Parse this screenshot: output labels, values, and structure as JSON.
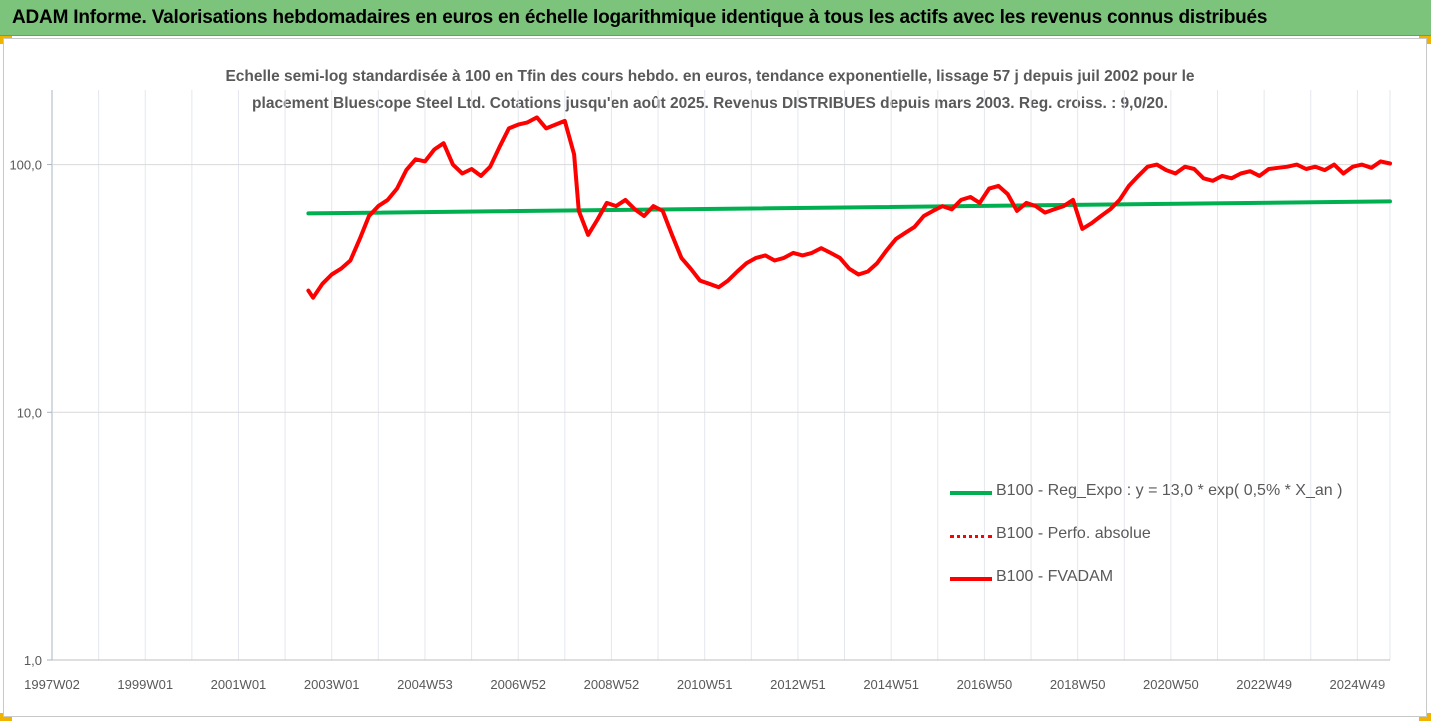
{
  "header": {
    "title": "ADAM Informe. Valorisations hebdomadaires en euros en échelle logarithmique identique à tous les actifs avec les revenus connus distribués"
  },
  "chart_data": {
    "type": "line",
    "title_lines": [
      "Echelle semi-log standardisée à 100 en Tfin des cours hebdo. en euros, tendance exponentielle, lissage 57 j depuis juil 2002 pour le",
      "placement Bluescope Steel Ltd. Cotations jusqu'en août 2025.  Revenus DISTRIBUES depuis mars 2003. Reg. croiss. : 9,0/20."
    ],
    "y_scale": "log",
    "ylim": [
      1,
      200
    ],
    "y_ticks": [
      {
        "value": 1,
        "label": "1,0"
      },
      {
        "value": 10,
        "label": "10,0"
      },
      {
        "value": 100,
        "label": "100,0"
      }
    ],
    "xlim": [
      1997.0,
      2025.7
    ],
    "x_ticks": [
      {
        "value": 1997.0,
        "label": "1997W02"
      },
      {
        "value": 1999.0,
        "label": "1999W01"
      },
      {
        "value": 2001.0,
        "label": "2001W01"
      },
      {
        "value": 2003.0,
        "label": "2003W01"
      },
      {
        "value": 2005.0,
        "label": "2004W53"
      },
      {
        "value": 2007.0,
        "label": "2006W52"
      },
      {
        "value": 2009.0,
        "label": "2008W52"
      },
      {
        "value": 2011.0,
        "label": "2010W51"
      },
      {
        "value": 2013.0,
        "label": "2012W51"
      },
      {
        "value": 2015.0,
        "label": "2014W51"
      },
      {
        "value": 2017.0,
        "label": "2016W50"
      },
      {
        "value": 2019.0,
        "label": "2018W50"
      },
      {
        "value": 2021.0,
        "label": "2020W50"
      },
      {
        "value": 2023.0,
        "label": "2022W49"
      },
      {
        "value": 2025.0,
        "label": "2024W49"
      }
    ],
    "grid": "vertical",
    "legend_placement": "bottom-right",
    "series": [
      {
        "name": "B100 - Reg_Expo : y = 13,0 * exp( 0,5% *  X_an )",
        "color": "#00b050",
        "style": "solid",
        "x": [
          2002.5,
          2025.7
        ],
        "y": [
          63.5,
          71.0
        ]
      },
      {
        "name": "B100 - Perfo. absolue",
        "color": "#ff0000",
        "style": "dotted",
        "x": [],
        "y": []
      },
      {
        "name": "B100 - FVADAM",
        "color": "#ff0000",
        "style": "solid",
        "x": [
          2002.5,
          2002.6,
          2002.8,
          2003.0,
          2003.2,
          2003.4,
          2003.6,
          2003.8,
          2004.0,
          2004.2,
          2004.4,
          2004.6,
          2004.8,
          2005.0,
          2005.2,
          2005.4,
          2005.6,
          2005.8,
          2006.0,
          2006.2,
          2006.4,
          2006.6,
          2006.8,
          2007.0,
          2007.2,
          2007.4,
          2007.6,
          2007.8,
          2008.0,
          2008.2,
          2008.3,
          2008.5,
          2008.7,
          2008.9,
          2009.1,
          2009.3,
          2009.5,
          2009.7,
          2009.9,
          2010.1,
          2010.3,
          2010.5,
          2010.7,
          2010.9,
          2011.1,
          2011.3,
          2011.5,
          2011.7,
          2011.9,
          2012.1,
          2012.3,
          2012.5,
          2012.7,
          2012.9,
          2013.1,
          2013.3,
          2013.5,
          2013.7,
          2013.9,
          2014.1,
          2014.3,
          2014.5,
          2014.7,
          2014.9,
          2015.1,
          2015.3,
          2015.5,
          2015.7,
          2015.9,
          2016.1,
          2016.3,
          2016.5,
          2016.7,
          2016.9,
          2017.1,
          2017.3,
          2017.5,
          2017.7,
          2017.9,
          2018.1,
          2018.3,
          2018.5,
          2018.7,
          2018.9,
          2019.1,
          2019.3,
          2019.5,
          2019.7,
          2019.9,
          2020.1,
          2020.3,
          2020.5,
          2020.7,
          2020.9,
          2021.1,
          2021.3,
          2021.5,
          2021.7,
          2021.9,
          2022.1,
          2022.3,
          2022.5,
          2022.7,
          2022.9,
          2023.1,
          2023.3,
          2023.5,
          2023.7,
          2023.9,
          2024.1,
          2024.3,
          2024.5,
          2024.7,
          2024.9,
          2025.1,
          2025.3,
          2025.5,
          2025.7
        ],
        "y": [
          31,
          29,
          33,
          36,
          38,
          41,
          50,
          62,
          68,
          72,
          80,
          95,
          105,
          103,
          115,
          122,
          100,
          92,
          96,
          90,
          98,
          118,
          140,
          145,
          148,
          155,
          140,
          145,
          150,
          110,
          65,
          52,
          60,
          70,
          68,
          72,
          66,
          62,
          68,
          65,
          52,
          42,
          38,
          34,
          33,
          32,
          34,
          37,
          40,
          42,
          43,
          41,
          42,
          44,
          43,
          44,
          46,
          44,
          42,
          38,
          36,
          37,
          40,
          45,
          50,
          53,
          56,
          62,
          65,
          68,
          66,
          72,
          74,
          70,
          80,
          82,
          76,
          65,
          70,
          68,
          64,
          66,
          68,
          72,
          55,
          58,
          62,
          66,
          72,
          82,
          90,
          98,
          100,
          95,
          92,
          98,
          96,
          88,
          86,
          90,
          88,
          92,
          94,
          90,
          96,
          97,
          98,
          100,
          96,
          98,
          95,
          100,
          92,
          98,
          100,
          97,
          103,
          101
        ]
      }
    ]
  }
}
